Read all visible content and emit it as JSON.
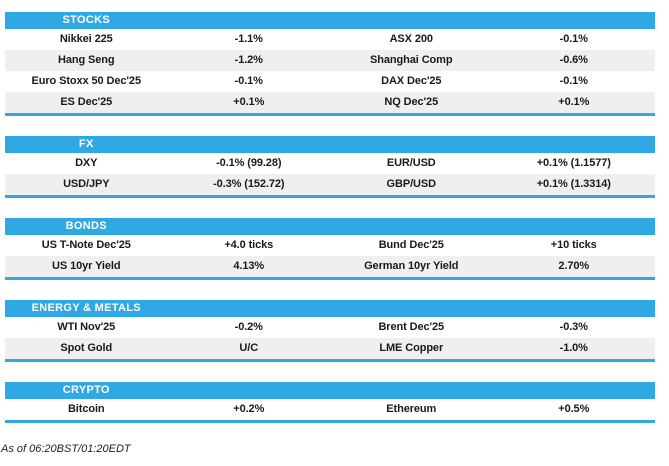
{
  "theme": {
    "accent": "#2FA8E4",
    "row_alt": "#EFEFEF",
    "text_color": "#1A1A1A",
    "header_text": "#FFFFFF"
  },
  "sections": [
    {
      "title": "STOCKS",
      "rows": [
        [
          "Nikkei 225",
          "-1.1%",
          "ASX 200",
          "-0.1%"
        ],
        [
          "Hang Seng",
          "-1.2%",
          "Shanghai Comp",
          "-0.6%"
        ],
        [
          "Euro Stoxx 50 Dec'25",
          "-0.1%",
          "DAX Dec'25",
          "-0.1%"
        ],
        [
          "ES Dec'25",
          "+0.1%",
          "NQ Dec'25",
          "+0.1%"
        ]
      ]
    },
    {
      "title": "FX",
      "rows": [
        [
          "DXY",
          "-0.1% (99.28)",
          "EUR/USD",
          "+0.1% (1.1577)"
        ],
        [
          "USD/JPY",
          "-0.3% (152.72)",
          "GBP/USD",
          "+0.1% (1.3314)"
        ]
      ]
    },
    {
      "title": "BONDS",
      "rows": [
        [
          "US T-Note Dec'25",
          "+4.0 ticks",
          "Bund Dec'25",
          "+10 ticks"
        ],
        [
          "US 10yr Yield",
          "4.13%",
          "German 10yr Yield",
          "2.70%"
        ]
      ]
    },
    {
      "title": "ENERGY & METALS",
      "rows": [
        [
          "WTI Nov'25",
          "-0.2%",
          "Brent Dec'25",
          "-0.3%"
        ],
        [
          "Spot Gold",
          "U/C",
          "LME Copper",
          "-1.0%"
        ]
      ]
    },
    {
      "title": "CRYPTO",
      "rows": [
        [
          "Bitcoin",
          "+0.2%",
          "Ethereum",
          "+0.5%"
        ]
      ]
    }
  ],
  "footer": {
    "as_of": "As of 06:20BST/01:20EDT"
  }
}
